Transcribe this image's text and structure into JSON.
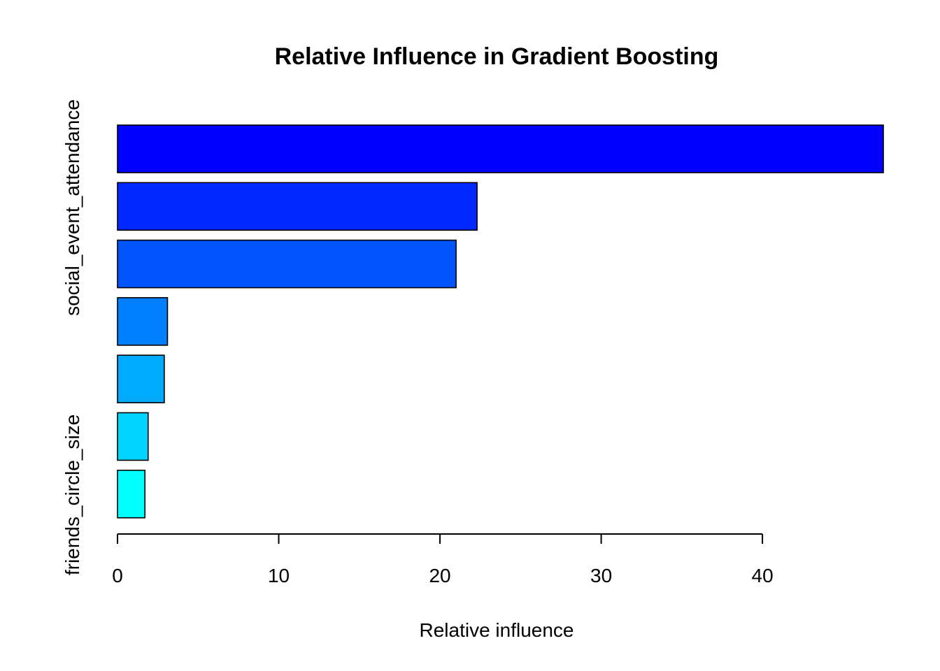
{
  "chart_data": {
    "type": "bar",
    "orientation": "horizontal",
    "title": "Relative Influence in Gradient Boosting",
    "xlabel": "Relative influence",
    "ylabel": "",
    "xlim": [
      0,
      47.5
    ],
    "x_ticks": [
      0,
      10,
      20,
      30,
      40
    ],
    "y_tick_labels": [
      "social_event_attendance",
      "friends_circle_size"
    ],
    "grid": false,
    "legend": "none",
    "bars": [
      {
        "value": 47.5,
        "color": "#0000FF"
      },
      {
        "value": 22.3,
        "color": "#0028FF"
      },
      {
        "value": 21.0,
        "color": "#0055FF"
      },
      {
        "value": 3.1,
        "color": "#0080FF"
      },
      {
        "value": 2.9,
        "color": "#00AAFF"
      },
      {
        "value": 1.9,
        "color": "#00D4FF"
      },
      {
        "value": 1.7,
        "color": "#00FFFF"
      }
    ]
  }
}
